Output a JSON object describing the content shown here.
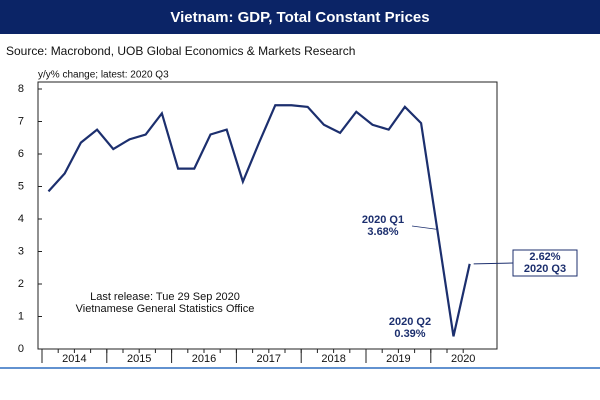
{
  "chart_data": {
    "type": "line",
    "title": "Vietnam: GDP, Total Constant Prices",
    "source": "Source: Macrobond, UOB Global Economics & Markets Research",
    "y_label": "y/y% change; latest: 2020 Q3",
    "notes": [
      "Last release: Tue 29 Sep 2020",
      "Vietnamese General Statistics Office"
    ],
    "categories": [
      null,
      null,
      null,
      null,
      null,
      null,
      null,
      null,
      null,
      null,
      null,
      null,
      null,
      null,
      null,
      null,
      null,
      null,
      null,
      null,
      null,
      null,
      null,
      null,
      null,
      null,
      null
    ],
    "year_ticks": [
      2014,
      2015,
      2016,
      2017,
      2018,
      2019,
      2020
    ],
    "series": [
      {
        "name": "GDP",
        "color": "#1c2f6e",
        "values": [
          4.85,
          5.4,
          6.35,
          6.75,
          6.15,
          6.45,
          6.6,
          7.25,
          5.55,
          5.55,
          6.6,
          6.75,
          5.15,
          6.35,
          7.5,
          7.5,
          7.45,
          6.9,
          6.65,
          7.3,
          6.9,
          6.75,
          7.45,
          6.95,
          3.68,
          0.39,
          2.62
        ],
        "value_labels": [
          null,
          null,
          null,
          null,
          null,
          null,
          null,
          null,
          null,
          null,
          null,
          null,
          null,
          null,
          null,
          null,
          null,
          null,
          null,
          null,
          null,
          null,
          null,
          null,
          "3.68%",
          "0.39%",
          "2.62%"
        ],
        "point_names": [
          null,
          null,
          null,
          null,
          null,
          null,
          null,
          null,
          null,
          null,
          null,
          null,
          null,
          null,
          null,
          null,
          null,
          null,
          null,
          null,
          null,
          null,
          null,
          null,
          "2020 Q1",
          "2020 Q2",
          "2020 Q3"
        ]
      }
    ],
    "ylim": [
      0,
      8
    ],
    "yticks": [
      0,
      1,
      2,
      3,
      4,
      5,
      6,
      7,
      8
    ]
  }
}
